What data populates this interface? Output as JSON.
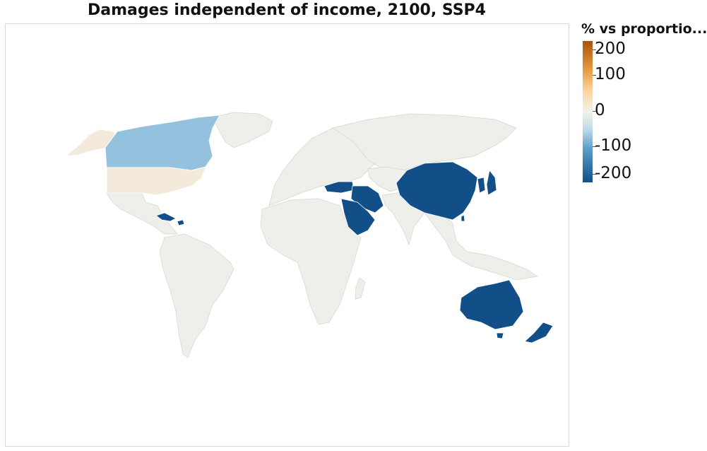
{
  "title": "Damages independent of income, 2100, SSP4",
  "legend": {
    "title": "% vs proportio...",
    "ticks": [
      "200",
      "100",
      "0",
      "-100",
      "-200"
    ],
    "tick_values": [
      200,
      100,
      0,
      -100,
      -200
    ],
    "range": [
      -250,
      250
    ],
    "colors": {
      "max": "#a6530f",
      "mid": "#f3f0ea",
      "min": "#114f8a"
    }
  },
  "regions": {
    "no_data_color": "#eeeeea",
    "highlighted": [
      {
        "name": "Alaska",
        "value": 10,
        "color": "#f3eadc"
      },
      {
        "name": "United States",
        "value": 10,
        "color": "#f3eadc"
      },
      {
        "name": "Canada",
        "value": -110,
        "color": "#94c2de"
      },
      {
        "name": "Cuba",
        "value": -220,
        "color": "#124e88"
      },
      {
        "name": "Caribbean",
        "value": -220,
        "color": "#124e88"
      },
      {
        "name": "Turkey",
        "value": -220,
        "color": "#124e88"
      },
      {
        "name": "Iran",
        "value": -220,
        "color": "#124e88"
      },
      {
        "name": "Saudi Arabia",
        "value": -220,
        "color": "#124e88"
      },
      {
        "name": "Iraq",
        "value": -220,
        "color": "#124e88"
      },
      {
        "name": "China",
        "value": -220,
        "color": "#124e88"
      },
      {
        "name": "Mongolia",
        "value": -220,
        "color": "#124e88"
      },
      {
        "name": "Japan",
        "value": -220,
        "color": "#124e88"
      },
      {
        "name": "Korea",
        "value": -220,
        "color": "#124e88"
      },
      {
        "name": "Taiwan",
        "value": -220,
        "color": "#124e88"
      },
      {
        "name": "Australia",
        "value": -220,
        "color": "#124e88"
      },
      {
        "name": "New Zealand",
        "value": -220,
        "color": "#124e88"
      }
    ]
  }
}
